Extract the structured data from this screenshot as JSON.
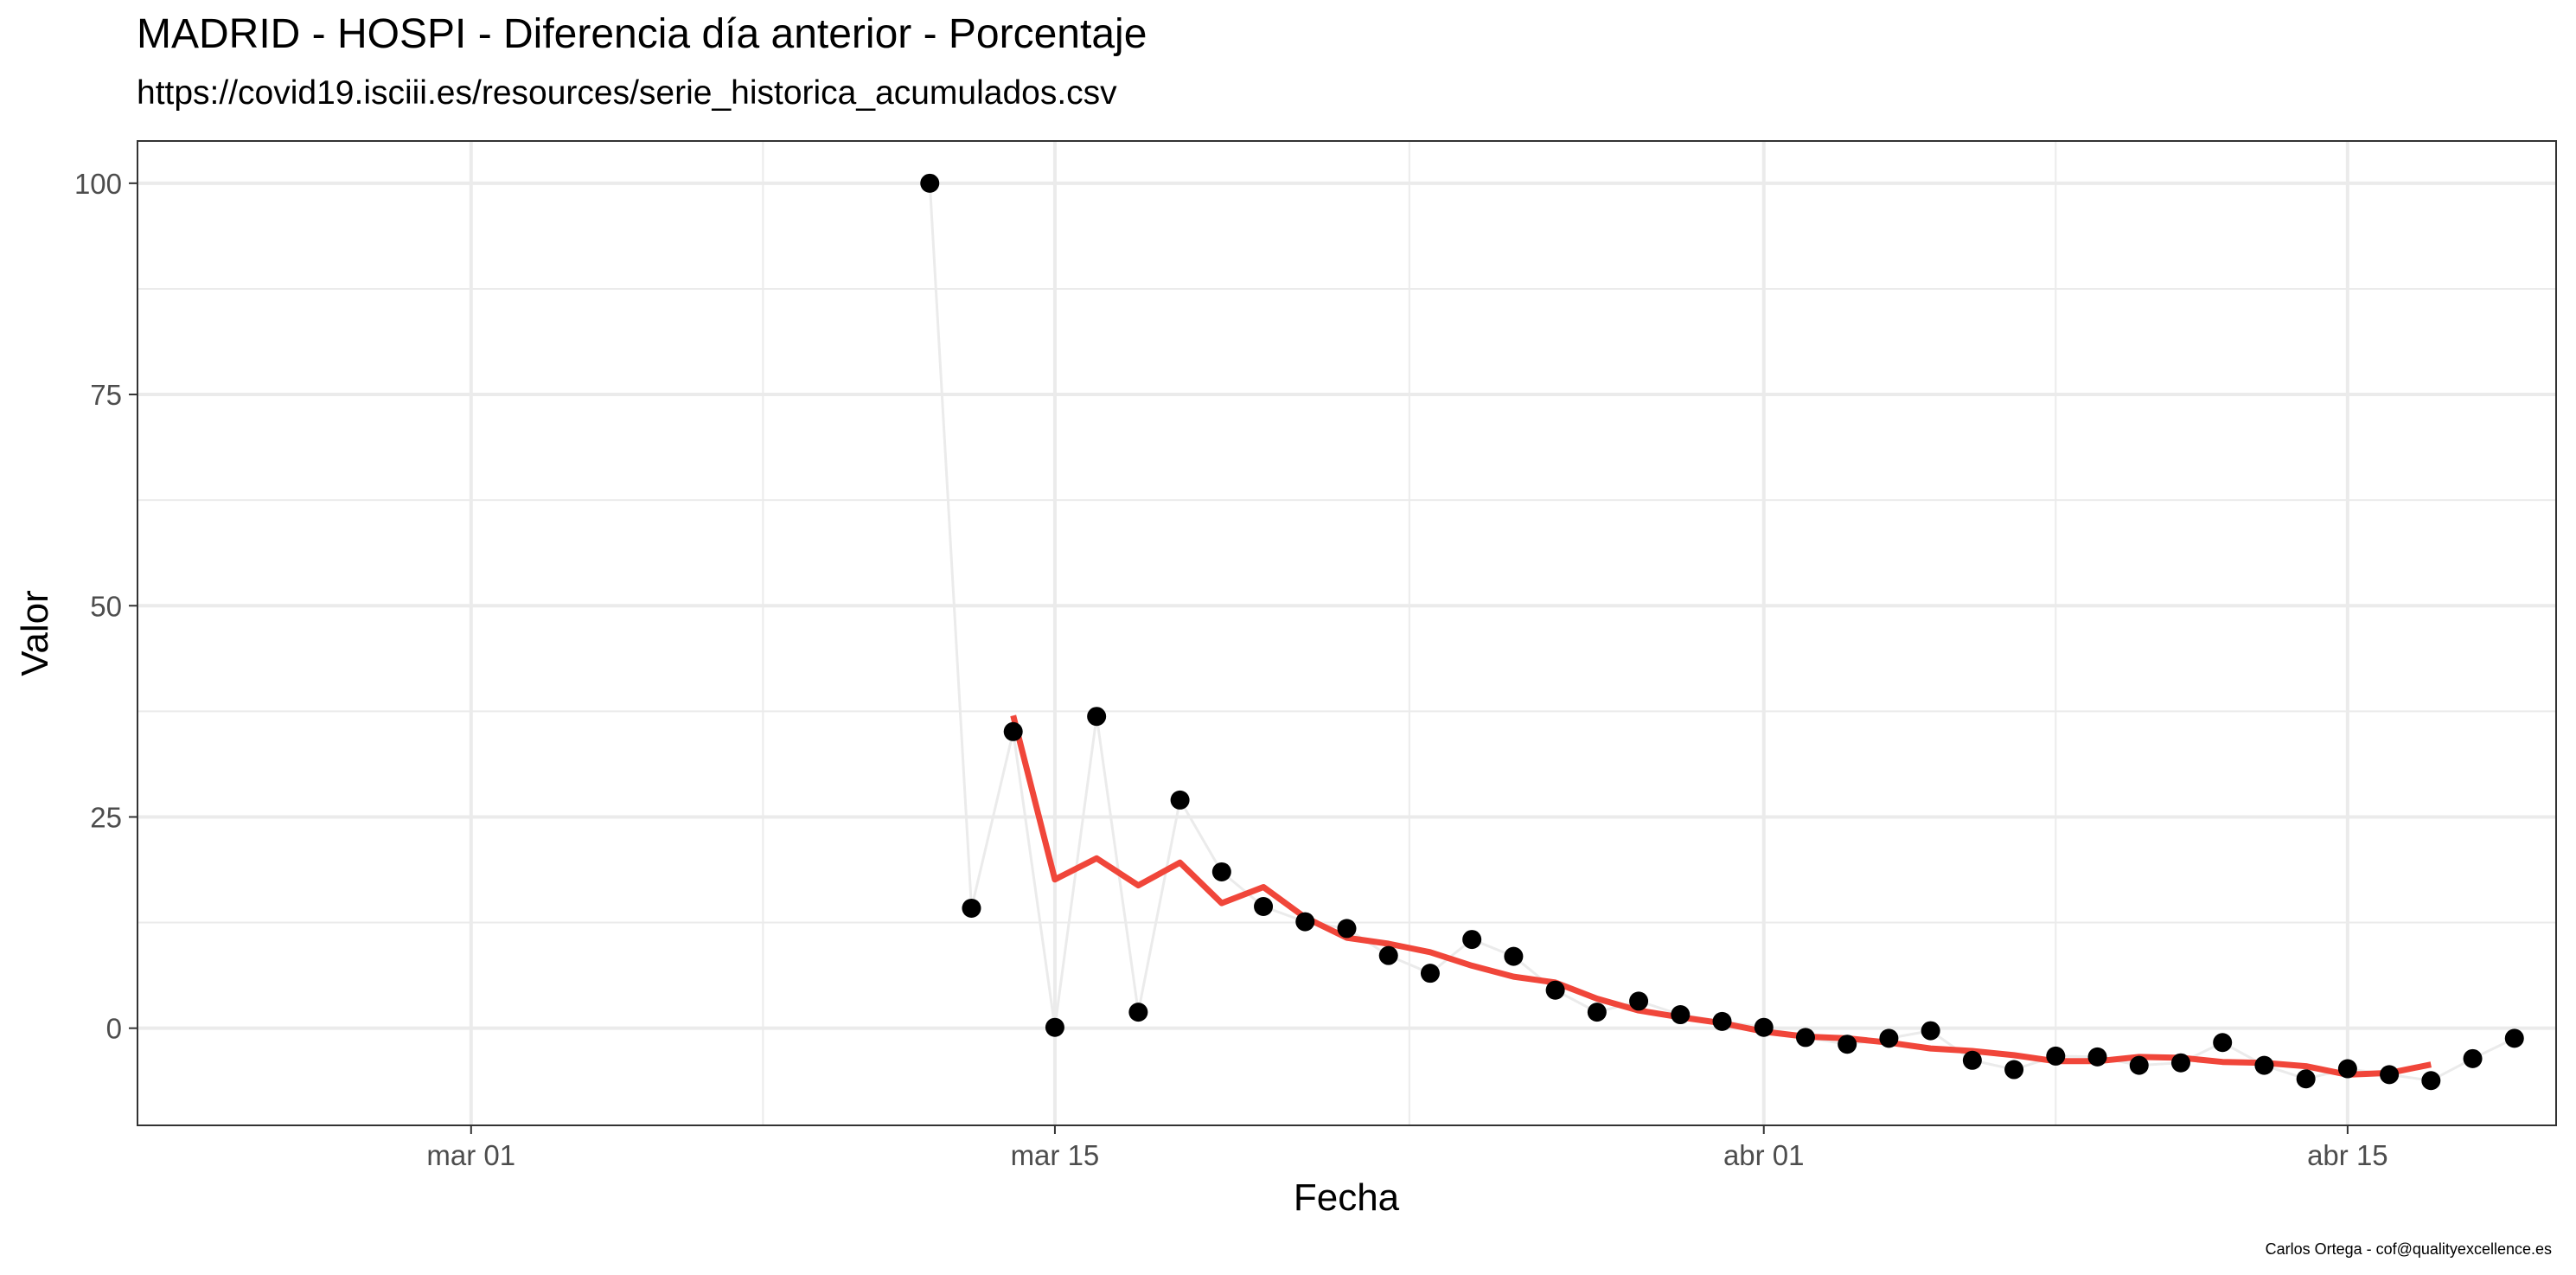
{
  "title": "MADRID - HOSPI - Diferencia día anterior - Porcentaje",
  "subtitle": "https://covid19.isciii.es/resources/serie_historica_acumulados.csv",
  "caption": "Carlos Ortega - cof@qualityexcellence.es",
  "chart_data": {
    "type": "line",
    "xlabel": "Fecha",
    "ylabel": "Valor",
    "x_ticks": [
      {
        "date": "2020-03-01",
        "label": "mar 01"
      },
      {
        "date": "2020-03-15",
        "label": "mar 15"
      },
      {
        "date": "2020-04-01",
        "label": "abr 01"
      },
      {
        "date": "2020-04-15",
        "label": "abr 15"
      }
    ],
    "y_ticks": [
      0,
      25,
      50,
      75,
      100
    ],
    "xlim": [
      "2020-02-22",
      "2020-04-20"
    ],
    "ylim": [
      -11.5,
      105
    ],
    "grid": true,
    "series": [
      {
        "kind": "points-with-line",
        "point_color": "#000000",
        "line_color": "#ebebeb",
        "x": [
          "2020-03-12",
          "2020-03-13",
          "2020-03-14",
          "2020-03-15",
          "2020-03-16",
          "2020-03-17",
          "2020-03-18",
          "2020-03-19",
          "2020-03-20",
          "2020-03-21",
          "2020-03-22",
          "2020-03-23",
          "2020-03-24",
          "2020-03-25",
          "2020-03-26",
          "2020-03-27",
          "2020-03-28",
          "2020-03-29",
          "2020-03-30",
          "2020-03-31",
          "2020-04-01",
          "2020-04-02",
          "2020-04-03",
          "2020-04-04",
          "2020-04-05",
          "2020-04-06",
          "2020-04-07",
          "2020-04-08",
          "2020-04-09",
          "2020-04-10",
          "2020-04-11",
          "2020-04-12",
          "2020-04-13",
          "2020-04-14",
          "2020-04-15",
          "2020-04-16",
          "2020-04-17",
          "2020-04-18",
          "2020-04-19"
        ],
        "y": [
          100,
          14.2,
          35.1,
          0.1,
          36.9,
          1.9,
          27.0,
          18.5,
          14.4,
          12.6,
          11.8,
          8.6,
          6.5,
          10.5,
          8.5,
          4.5,
          1.9,
          3.2,
          1.6,
          0.8,
          0.1,
          -1.1,
          -1.9,
          -1.2,
          -0.3,
          -3.8,
          -4.9,
          -3.3,
          -3.4,
          -4.4,
          -4.1,
          -1.7,
          -4.4,
          -6.0,
          -4.8,
          -5.5,
          -6.2,
          -3.6,
          -1.2
        ]
      },
      {
        "kind": "line",
        "line_color": "#f0463a",
        "x": [
          "2020-03-14",
          "2020-03-15",
          "2020-03-16",
          "2020-03-17",
          "2020-03-18",
          "2020-03-19",
          "2020-03-20",
          "2020-03-21",
          "2020-03-22",
          "2020-03-23",
          "2020-03-24",
          "2020-03-25",
          "2020-03-26",
          "2020-03-27",
          "2020-03-28",
          "2020-03-29",
          "2020-03-30",
          "2020-03-31",
          "2020-04-01",
          "2020-04-02",
          "2020-04-03",
          "2020-04-04",
          "2020-04-05",
          "2020-04-06",
          "2020-04-07",
          "2020-04-08",
          "2020-04-09",
          "2020-04-10",
          "2020-04-11",
          "2020-04-12",
          "2020-04-13",
          "2020-04-14",
          "2020-04-15",
          "2020-04-16",
          "2020-04-17"
        ],
        "y": [
          37.0,
          17.6,
          20.1,
          16.9,
          19.6,
          14.8,
          16.7,
          13.1,
          10.7,
          10.0,
          9.0,
          7.4,
          6.1,
          5.4,
          3.5,
          2.1,
          1.3,
          0.6,
          -0.4,
          -1.0,
          -1.2,
          -1.7,
          -2.4,
          -2.7,
          -3.2,
          -3.9,
          -3.9,
          -3.4,
          -3.5,
          -4.0,
          -4.1,
          -4.5,
          -5.5,
          -5.3,
          -4.3
        ]
      }
    ]
  }
}
